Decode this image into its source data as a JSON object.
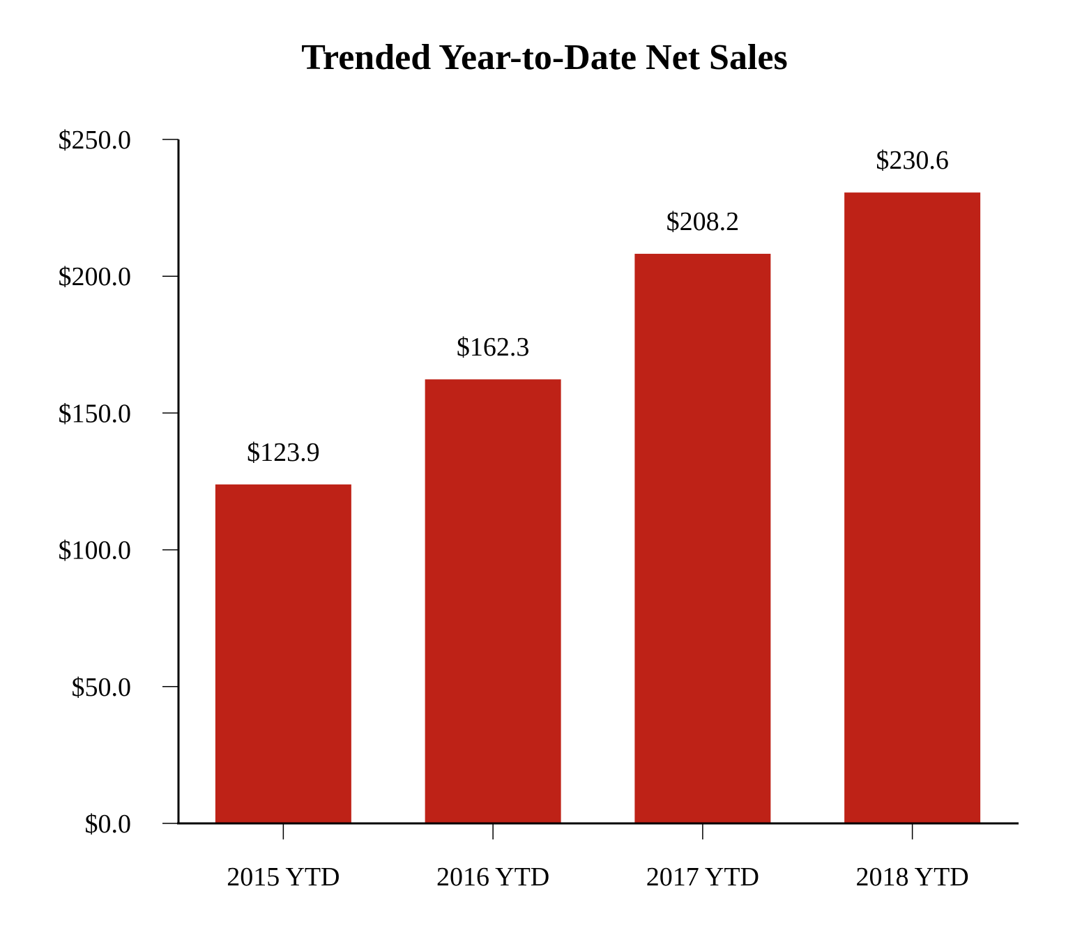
{
  "chart_data": {
    "type": "bar",
    "title": "Trended Year-to-Date Net Sales",
    "xlabel": "",
    "ylabel": "",
    "categories": [
      "2015 YTD",
      "2016 YTD",
      "2017 YTD",
      "2018 YTD"
    ],
    "values": [
      123.9,
      162.3,
      208.2,
      230.6
    ],
    "data_labels": [
      "$123.9",
      "$162.3",
      "$208.2",
      "$230.6"
    ],
    "ylim": [
      0,
      250
    ],
    "yticks": [
      0,
      50,
      100,
      150,
      200,
      250
    ],
    "ytick_labels": [
      "$0.0",
      "$50.0",
      "$100.0",
      "$150.0",
      "$200.0",
      "$250.0"
    ],
    "grid": false,
    "legend": "none",
    "bar_color": "#BE2217"
  }
}
